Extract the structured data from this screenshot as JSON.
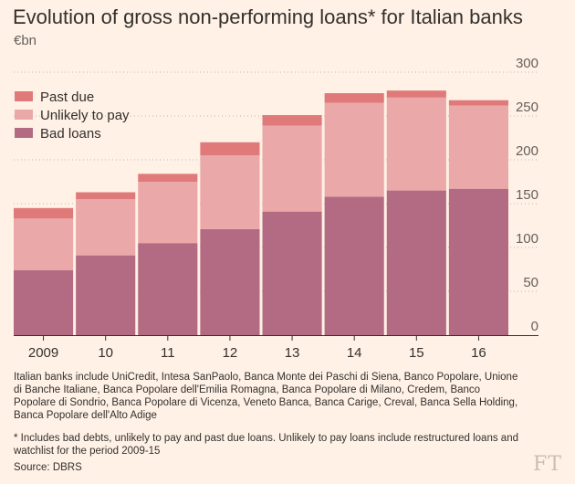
{
  "title": "Evolution of gross non-performing loans* for Italian banks",
  "subtitle": "€bn",
  "notes": {
    "banks": "Italian banks include UniCredit, Intesa SanPaolo, Banca Monte dei Paschi di Siena, Banco Popolare, Unione di Banche Italiane, Banca Popolare dell'Emilia Romagna, Banca Popolare di Milano, Credem, Banco Popolare di Sondrio, Banca Popolare di Vicenza, Veneto Banca, Banca Carige, Creval, Banca Sella Holding, Banca Popolare dell'Alto Adige",
    "footnote": "* Includes bad debts, unlikely to pay and past due loans. Unlikely to pay loans include restructured loans and watchlist for the period 2009-15",
    "source": "Source: DBRS"
  },
  "logo": "FT",
  "chart_data": {
    "type": "bar",
    "stacked": true,
    "categories": [
      "2009",
      "10",
      "11",
      "12",
      "13",
      "14",
      "15",
      "16"
    ],
    "series": [
      {
        "name": "Bad loans",
        "color": "#b36b84",
        "values": [
          74,
          91,
          105,
          121,
          141,
          158,
          165,
          167
        ]
      },
      {
        "name": "Unlikely to pay",
        "color": "#eaa8a8",
        "values": [
          59,
          64,
          70,
          84,
          98,
          107,
          106,
          95
        ]
      },
      {
        "name": "Past due",
        "color": "#e07a7a",
        "values": [
          12,
          8,
          9,
          15,
          12,
          11,
          8,
          6
        ]
      }
    ],
    "legend_order": [
      "Past due",
      "Unlikely to pay",
      "Bad loans"
    ],
    "legend_position": "top-left",
    "ylim": [
      0,
      300
    ],
    "yticks": [
      0,
      50,
      100,
      150,
      200,
      250,
      300
    ],
    "ytick_labels": [
      "0",
      "50",
      "100",
      "150",
      "200",
      "250",
      "300"
    ],
    "xlabel": "",
    "ylabel": "",
    "grid": "horizontal dotted"
  }
}
